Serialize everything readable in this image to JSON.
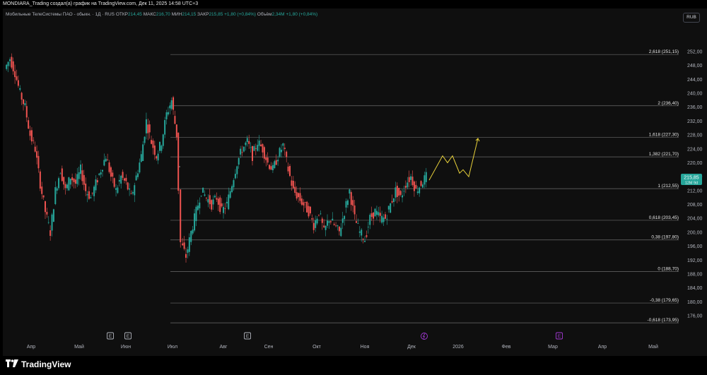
{
  "header": {
    "attribution": "MONDIARA_Trading создал(а) график на TradingView.com, Дек 11, 2025 14:58 UTC+3"
  },
  "legend": {
    "symbol": "Мобильные ТелеСистемы ПАО - обыкн. · 1Д · RUS",
    "open_label": "ОТКР",
    "open": "214,45",
    "high_label": "МАКС",
    "high": "216,70",
    "low_label": "МИН",
    "low": "214,15",
    "close_label": "ЗАКР",
    "close": "215,85",
    "change": "+1,80 (+0,84%)",
    "volume_label": "Объём",
    "volume": "2,34M",
    "volume_change": "+1,80 (+0,84%)"
  },
  "currency_button": "RUB",
  "price_badge": {
    "price": "215,85",
    "sub": "12M 9d"
  },
  "colors": {
    "up": "#26a69a",
    "down": "#ef5350",
    "projection": "#e8d13a",
    "event": "#a43ad6"
  },
  "branding": {
    "logo_text": "TradingView",
    "logo_icon": "tradingview-logo-icon"
  },
  "chart_data": {
    "type": "candlestick",
    "y_axis_ticks": [
      "252,00",
      "248,00",
      "244,00",
      "240,00",
      "236,00",
      "232,00",
      "228,00",
      "224,00",
      "220,00",
      "216,00",
      "212,00",
      "208,00",
      "204,00",
      "200,00",
      "196,00",
      "192,00",
      "188,00",
      "184,00",
      "180,00",
      "176,00"
    ],
    "x_axis_labels": [
      "Апр",
      "Май",
      "Июн",
      "Июл",
      "Авг",
      "Сен",
      "Окт",
      "Ноя",
      "Дек",
      "2026",
      "Фев",
      "Мар",
      "Апр",
      "Май"
    ],
    "fib_levels": [
      {
        "value": 251.15,
        "label": "2,618 (251,15)"
      },
      {
        "value": 236.4,
        "label": "2 (236,40)"
      },
      {
        "value": 227.3,
        "label": "1,618 (227,30)"
      },
      {
        "value": 221.7,
        "label": "1,382 (221,70)"
      },
      {
        "value": 212.55,
        "label": "1 (212,55)"
      },
      {
        "value": 203.45,
        "label": "0,618 (203,45)"
      },
      {
        "value": 197.8,
        "label": "0,38 (197,80)"
      },
      {
        "value": 188.7,
        "label": "0 (188,70)"
      },
      {
        "value": 179.65,
        "label": "-0,38 (179,65)"
      },
      {
        "value": 173.95,
        "label": "-0,618 (173,95)"
      }
    ],
    "price_path": [
      [
        0,
        247
      ],
      [
        1,
        250
      ],
      [
        2,
        246
      ],
      [
        3,
        240
      ],
      [
        4,
        236
      ],
      [
        5,
        228
      ],
      [
        6,
        224
      ],
      [
        7,
        214
      ],
      [
        8,
        206
      ],
      [
        9,
        200
      ],
      [
        10,
        212
      ],
      [
        11,
        218
      ],
      [
        12,
        212
      ],
      [
        13,
        216
      ],
      [
        14,
        214
      ],
      [
        15,
        218
      ],
      [
        16,
        212
      ],
      [
        17,
        210
      ],
      [
        18,
        214
      ],
      [
        19,
        218
      ],
      [
        20,
        222
      ],
      [
        21,
        216
      ],
      [
        22,
        212
      ],
      [
        23,
        216
      ],
      [
        24,
        214
      ],
      [
        25,
        210
      ],
      [
        26,
        216
      ],
      [
        27,
        222
      ],
      [
        28,
        232
      ],
      [
        29,
        226
      ],
      [
        30,
        222
      ],
      [
        31,
        226
      ],
      [
        32,
        234
      ],
      [
        33,
        238
      ],
      [
        34,
        228
      ],
      [
        35,
        197
      ],
      [
        36,
        193
      ],
      [
        37,
        200
      ],
      [
        38,
        206
      ],
      [
        39,
        212
      ],
      [
        40,
        210
      ],
      [
        41,
        208
      ],
      [
        42,
        210
      ],
      [
        43,
        206
      ],
      [
        44,
        208
      ],
      [
        45,
        214
      ],
      [
        46,
        220
      ],
      [
        47,
        224
      ],
      [
        48,
        226
      ],
      [
        49,
        222
      ],
      [
        50,
        226
      ],
      [
        51,
        224
      ],
      [
        52,
        220
      ],
      [
        53,
        218
      ],
      [
        54,
        222
      ],
      [
        55,
        225
      ],
      [
        56,
        218
      ],
      [
        57,
        212
      ],
      [
        58,
        210
      ],
      [
        59,
        208
      ],
      [
        60,
        206
      ],
      [
        61,
        202
      ],
      [
        62,
        206
      ],
      [
        63,
        200
      ],
      [
        64,
        204
      ],
      [
        65,
        202
      ],
      [
        66,
        200
      ],
      [
        67,
        206
      ],
      [
        68,
        212
      ],
      [
        69,
        204
      ],
      [
        70,
        200
      ],
      [
        71,
        198
      ],
      [
        72,
        204
      ],
      [
        73,
        206
      ],
      [
        74,
        204
      ],
      [
        75,
        204
      ],
      [
        76,
        208
      ],
      [
        77,
        212
      ],
      [
        78,
        210
      ],
      [
        79,
        214
      ],
      [
        80,
        216
      ],
      [
        81,
        212
      ],
      [
        82,
        214
      ],
      [
        83,
        216
      ]
    ],
    "projection": [
      [
        607,
        215
      ],
      [
        626,
        222
      ],
      [
        633,
        220
      ],
      [
        640,
        222
      ],
      [
        650,
        217
      ],
      [
        655,
        218
      ],
      [
        663,
        216
      ],
      [
        676,
        227
      ]
    ],
    "x_event_markers": [
      {
        "x_label_index": 1,
        "type": "E"
      },
      {
        "x_label_index": 2,
        "type": "E"
      },
      {
        "x_label_index": 4,
        "type": "E"
      },
      {
        "x_label_index": 8,
        "type": "dividend"
      },
      {
        "x_label_index": 11,
        "type": "E"
      }
    ]
  }
}
